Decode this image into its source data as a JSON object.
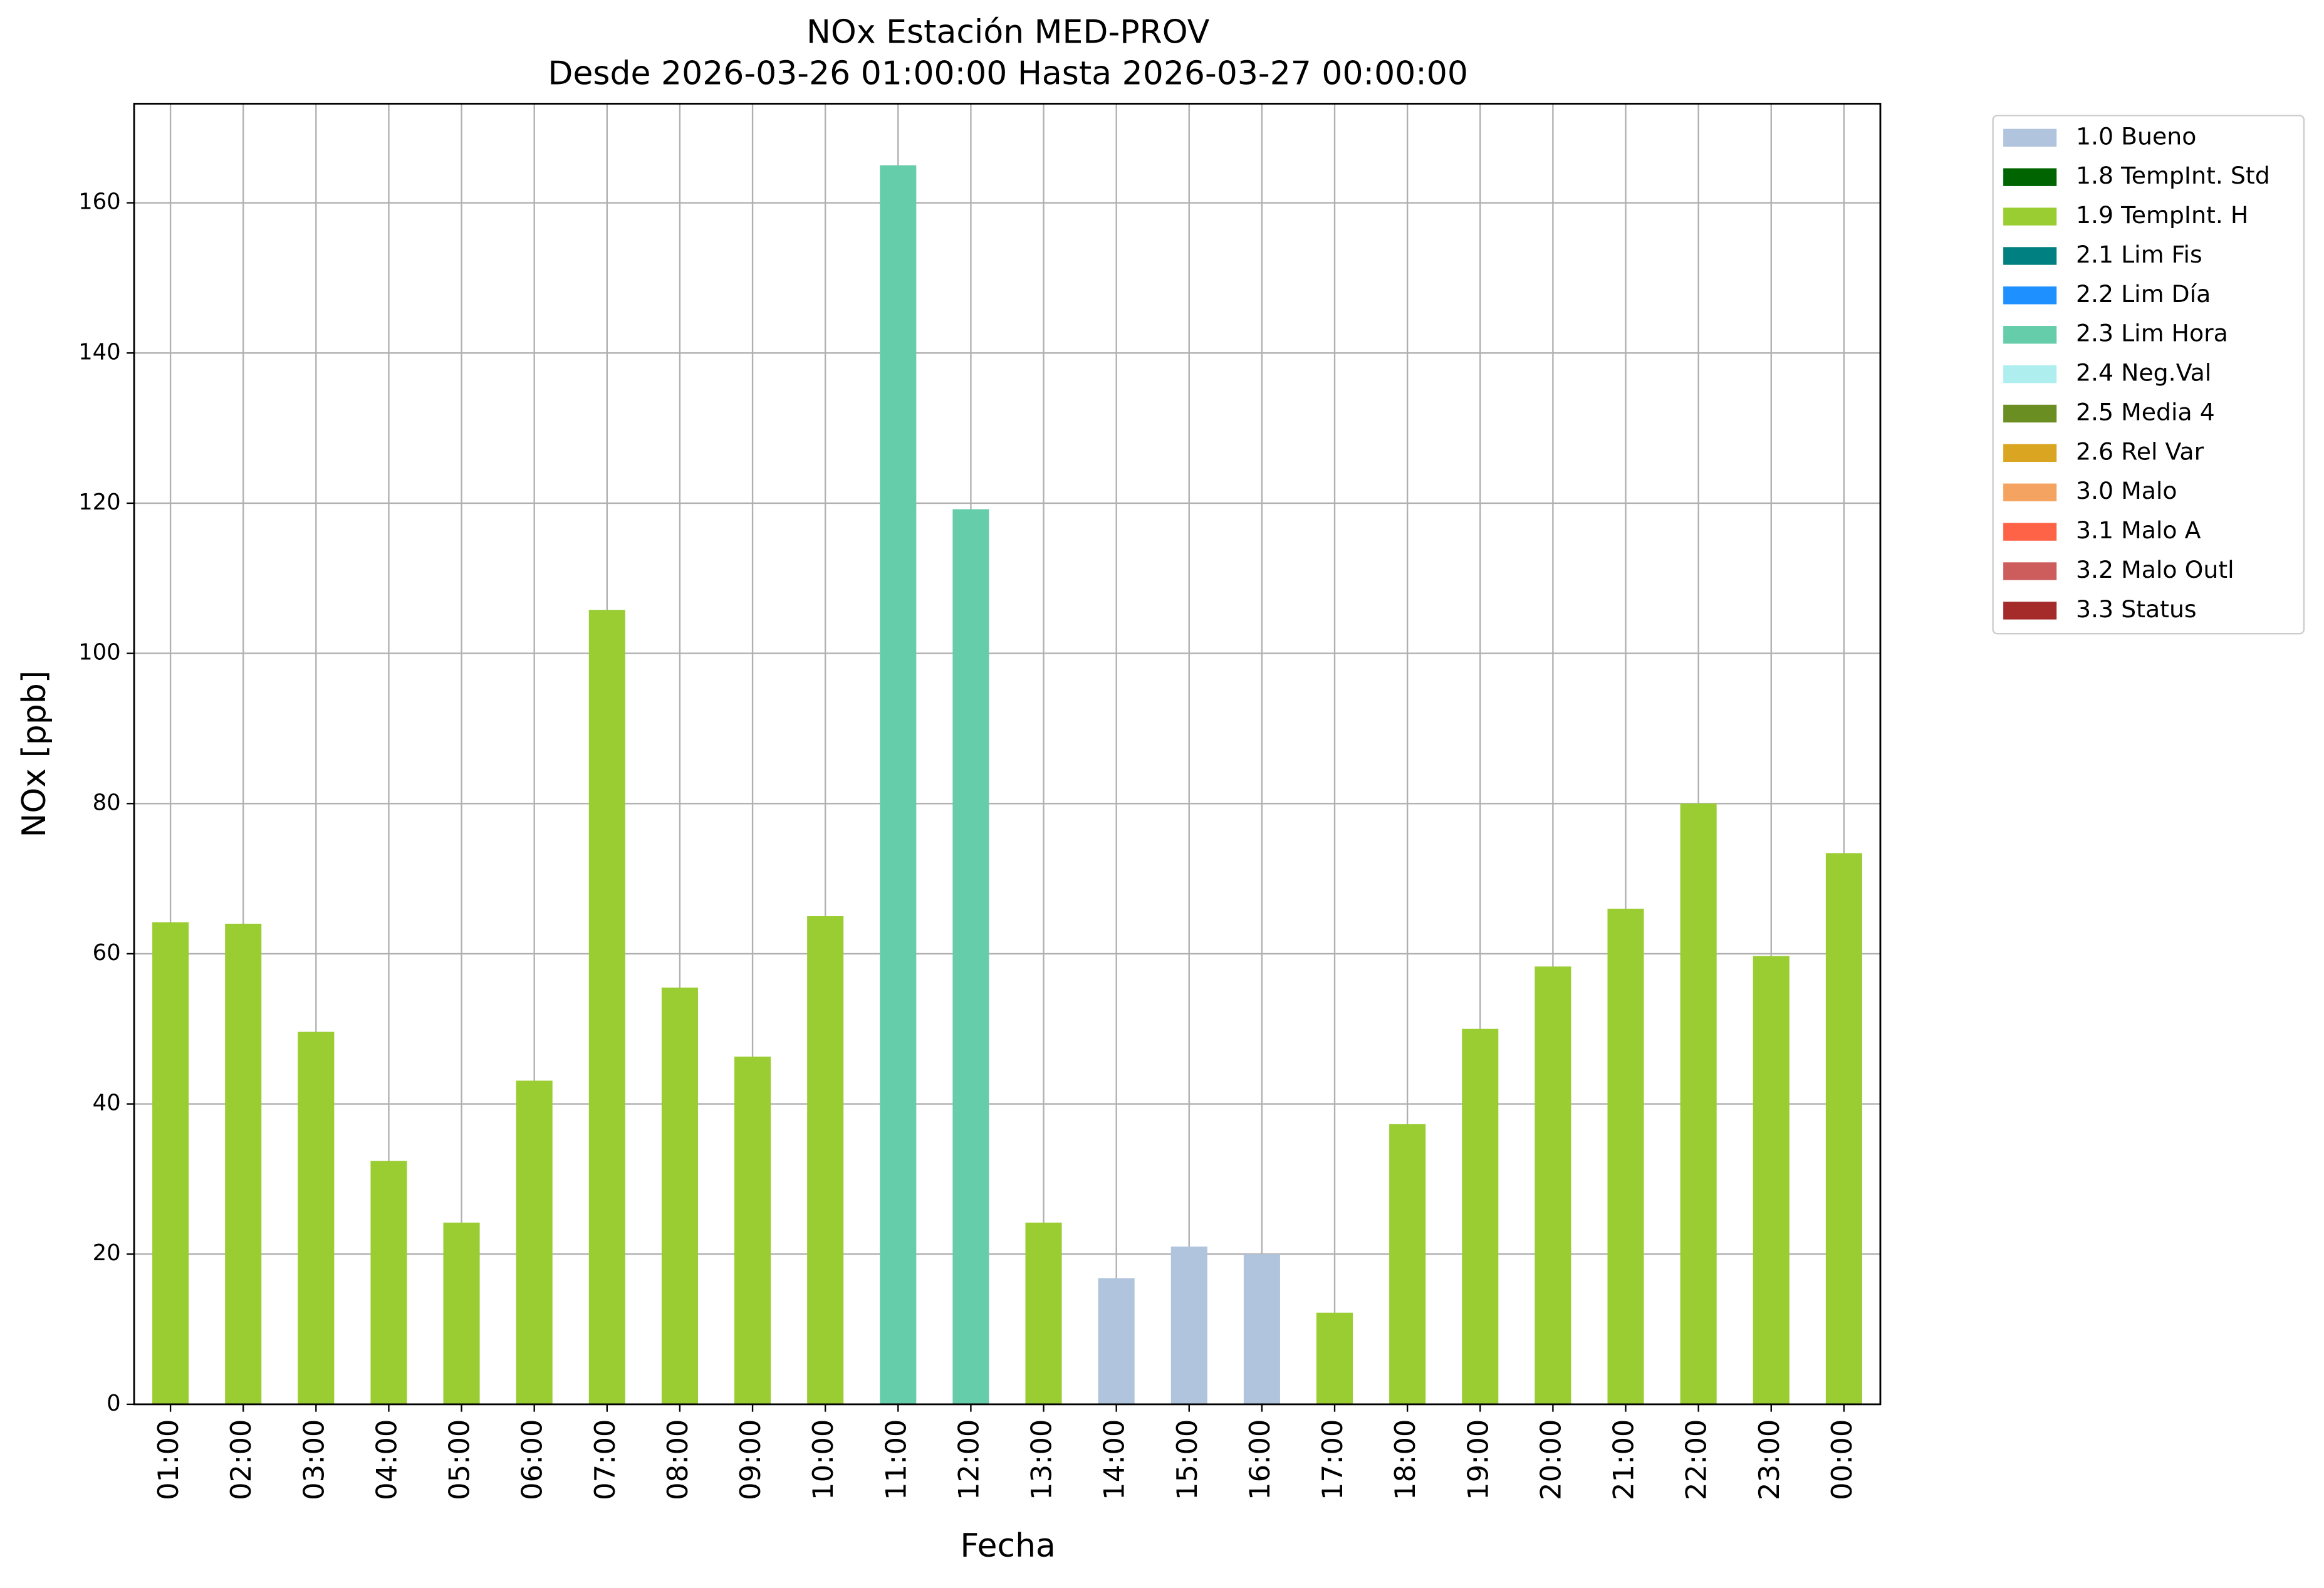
{
  "chart_data": {
    "type": "stacked_bar",
    "title": "NOx Estación MED-PROV",
    "subtitle": "Desde 2026-03-26 01:00:00 Hasta 2026-03-27 00:00:00",
    "x_label": "Fecha",
    "y_label": "NOx [ppb]",
    "categories": [
      "01:00",
      "02:00",
      "03:00",
      "04:00",
      "05:00",
      "06:00",
      "07:00",
      "08:00",
      "09:00",
      "10:00",
      "11:00",
      "12:00",
      "13:00",
      "14:00",
      "15:00",
      "16:00",
      "17:00",
      "18:00",
      "19:00",
      "20:00",
      "21:00",
      "22:00",
      "23:00",
      "00:00"
    ],
    "series": [
      {
        "name": "1.0 Bueno",
        "color": "#b0c4de",
        "values": [
          null,
          null,
          null,
          null,
          null,
          null,
          null,
          null,
          null,
          null,
          null,
          null,
          null,
          16.8,
          21.0,
          20.0,
          null,
          null,
          null,
          null,
          null,
          null,
          null,
          null
        ]
      },
      {
        "name": "1.8 TempInt. Std",
        "color": "#006400",
        "values": [
          null,
          null,
          null,
          null,
          null,
          null,
          null,
          null,
          null,
          null,
          null,
          null,
          null,
          null,
          null,
          null,
          null,
          null,
          null,
          null,
          null,
          null,
          null,
          null
        ]
      },
      {
        "name": "1.9 TempInt. H",
        "color": "#9acd32",
        "values": [
          64.2,
          64.0,
          49.6,
          32.4,
          24.2,
          43.1,
          105.8,
          55.5,
          46.3,
          65.0,
          null,
          null,
          24.2,
          null,
          null,
          null,
          12.2,
          37.3,
          50.0,
          58.3,
          66.0,
          80.0,
          59.7,
          73.4
        ]
      },
      {
        "name": "2.1 Lim Fis",
        "color": "#008080",
        "values": [
          null,
          null,
          null,
          null,
          null,
          null,
          null,
          null,
          null,
          null,
          null,
          null,
          null,
          null,
          null,
          null,
          null,
          null,
          null,
          null,
          null,
          null,
          null,
          null
        ]
      },
      {
        "name": "2.2 Lim Día",
        "color": "#1e90ff",
        "values": [
          null,
          null,
          null,
          null,
          null,
          null,
          null,
          null,
          null,
          null,
          null,
          null,
          null,
          null,
          null,
          null,
          null,
          null,
          null,
          null,
          null,
          null,
          null,
          null
        ]
      },
      {
        "name": "2.3 Lim Hora",
        "color": "#66cdaa",
        "values": [
          null,
          null,
          null,
          null,
          null,
          null,
          null,
          null,
          null,
          null,
          165.0,
          119.2,
          null,
          null,
          null,
          null,
          null,
          null,
          null,
          null,
          null,
          null,
          null,
          null
        ]
      },
      {
        "name": "2.4 Neg.Val",
        "color": "#afeeee",
        "values": [
          null,
          null,
          null,
          null,
          null,
          null,
          null,
          null,
          null,
          null,
          null,
          null,
          null,
          null,
          null,
          null,
          null,
          null,
          null,
          null,
          null,
          null,
          null,
          null
        ]
      },
      {
        "name": "2.5 Media 4",
        "color": "#6b8e23",
        "values": [
          null,
          null,
          null,
          null,
          null,
          null,
          null,
          null,
          null,
          null,
          null,
          null,
          null,
          null,
          null,
          null,
          null,
          null,
          null,
          null,
          null,
          null,
          null,
          null
        ]
      },
      {
        "name": "2.6 Rel Var",
        "color": "#daa520",
        "values": [
          null,
          null,
          null,
          null,
          null,
          null,
          null,
          null,
          null,
          null,
          null,
          null,
          null,
          null,
          null,
          null,
          null,
          null,
          null,
          null,
          null,
          null,
          null,
          null
        ]
      },
      {
        "name": "3.0 Malo",
        "color": "#f4a460",
        "values": [
          null,
          null,
          null,
          null,
          null,
          null,
          null,
          null,
          null,
          null,
          null,
          null,
          null,
          null,
          null,
          null,
          null,
          null,
          null,
          null,
          null,
          null,
          null,
          null
        ]
      },
      {
        "name": "3.1 Malo A",
        "color": "#ff6347",
        "values": [
          null,
          null,
          null,
          null,
          null,
          null,
          null,
          null,
          null,
          null,
          null,
          null,
          null,
          null,
          null,
          null,
          null,
          null,
          null,
          null,
          null,
          null,
          null,
          null
        ]
      },
      {
        "name": "3.2 Malo Outl",
        "color": "#cd5c5c",
        "values": [
          null,
          null,
          null,
          null,
          null,
          null,
          null,
          null,
          null,
          null,
          null,
          null,
          null,
          null,
          null,
          null,
          null,
          null,
          null,
          null,
          null,
          null,
          null,
          null
        ]
      },
      {
        "name": "3.3 Status",
        "color": "#a52a2a",
        "values": [
          null,
          null,
          null,
          null,
          null,
          null,
          null,
          null,
          null,
          null,
          null,
          null,
          null,
          null,
          null,
          null,
          null,
          null,
          null,
          null,
          null,
          null,
          null,
          null
        ]
      }
    ],
    "ylim": [
      0,
      173.2
    ],
    "yticks": [
      0,
      20,
      40,
      60,
      80,
      100,
      120,
      140,
      160
    ],
    "grid": true,
    "legend": "outside-upper-right"
  }
}
